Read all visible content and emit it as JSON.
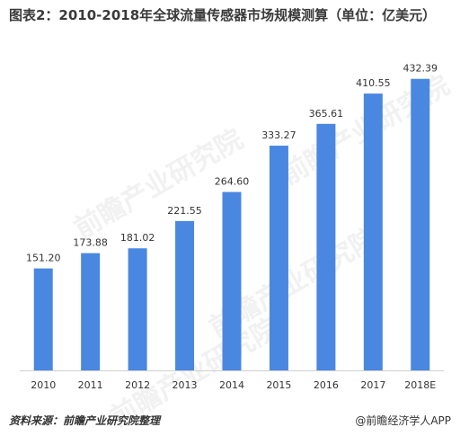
{
  "chart_data": {
    "type": "bar",
    "title": "图表2：2010-2018年全球流量传感器市场规模测算（单位：亿美元）",
    "categories": [
      "2010",
      "2011",
      "2012",
      "2013",
      "2014",
      "2015",
      "2016",
      "2017",
      "2018E"
    ],
    "values": [
      151.2,
      173.88,
      181.02,
      221.55,
      264.6,
      333.27,
      365.61,
      410.55,
      432.39
    ],
    "value_labels": [
      "151.20",
      "173.88",
      "181.02",
      "221.55",
      "264.60",
      "333.27",
      "365.61",
      "410.55",
      "432.39"
    ],
    "xlabel": "",
    "ylabel": "",
    "ylim": [
      0,
      440
    ],
    "grid": false,
    "bar_color": "#4a87e0"
  },
  "footer": {
    "source": "资料来源：前瞻产业研究院整理",
    "brand": "@前瞻经济学人APP"
  },
  "watermark": "前瞻产业研究院"
}
